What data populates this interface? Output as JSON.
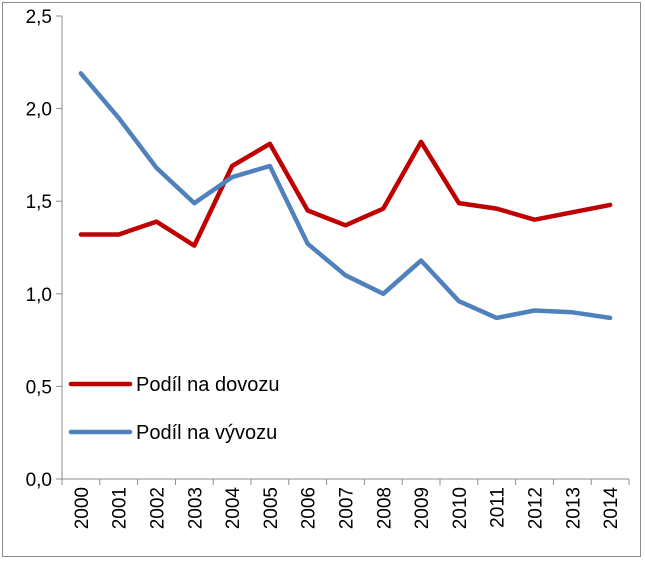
{
  "chart_data": {
    "type": "line",
    "title": "",
    "xlabel": "",
    "ylabel": "",
    "categories": [
      "2000",
      "2001",
      "2002",
      "2003",
      "2004",
      "2005",
      "2006",
      "2007",
      "2008",
      "2009",
      "2010",
      "2011",
      "2012",
      "2013",
      "2014"
    ],
    "y_tick_labels": [
      "0,0",
      "0,5",
      "1,0",
      "1,5",
      "2,0",
      "2,5"
    ],
    "ylim": [
      0,
      2.5
    ],
    "grid": false,
    "legend_position": "lower-left",
    "series": [
      {
        "name": "Podíl na dovozu",
        "color": "#c00000",
        "values": [
          1.32,
          1.32,
          1.39,
          1.26,
          1.69,
          1.81,
          1.45,
          1.37,
          1.46,
          1.82,
          1.49,
          1.46,
          1.4,
          1.44,
          1.48
        ]
      },
      {
        "name": "Podíl na vývozu",
        "color": "#4f81bd",
        "values": [
          2.19,
          1.95,
          1.68,
          1.49,
          1.63,
          1.69,
          1.27,
          1.1,
          1.0,
          1.18,
          0.96,
          0.87,
          0.91,
          0.9,
          0.87
        ]
      }
    ]
  }
}
